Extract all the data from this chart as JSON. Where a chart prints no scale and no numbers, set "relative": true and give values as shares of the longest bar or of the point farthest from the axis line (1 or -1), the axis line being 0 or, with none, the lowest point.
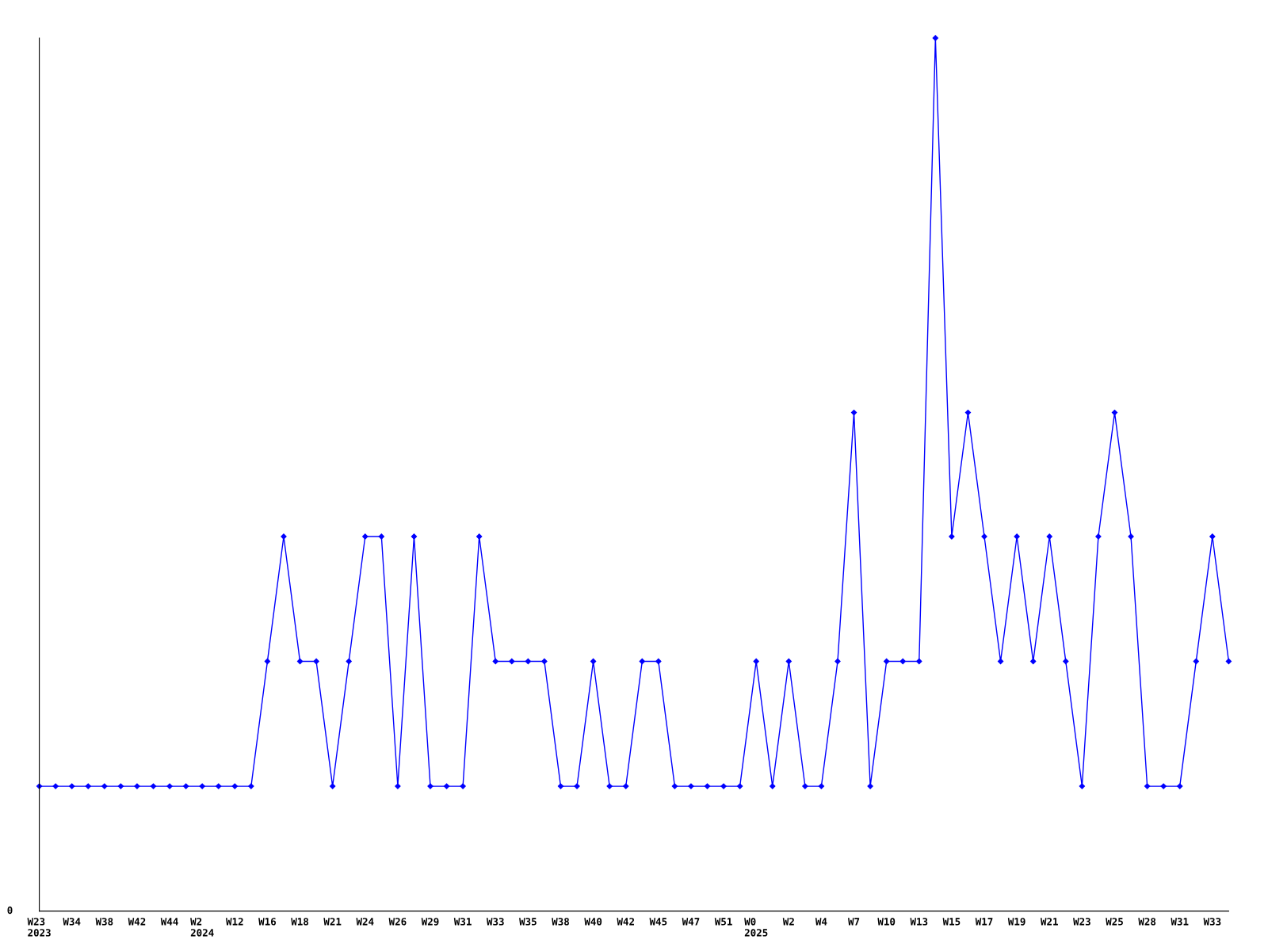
{
  "chart_data": {
    "type": "line",
    "relative": true,
    "marker": "diamond",
    "line_style": "solid",
    "grid": false,
    "legend": false,
    "categories": [
      "W23\n2023",
      null,
      "W34",
      null,
      "W38",
      null,
      "W42",
      null,
      "W44",
      null,
      "W2\n2024",
      null,
      "W12",
      null,
      "W16",
      null,
      "W18",
      null,
      "W21",
      null,
      "W24",
      null,
      "W26",
      null,
      "W29",
      null,
      "W31",
      null,
      "W33",
      null,
      "W35",
      null,
      "W38",
      null,
      "W40",
      null,
      "W42",
      null,
      "W45",
      null,
      "W47",
      null,
      "W51",
      null,
      "W0\n2025",
      null,
      "W2",
      null,
      "W4",
      null,
      "W7",
      null,
      "W10",
      null,
      "W13",
      null,
      "W15",
      null,
      "W17",
      null,
      "W19",
      null,
      "W21",
      null,
      "W23",
      null,
      "W25",
      null,
      "W28",
      null,
      "W31",
      null,
      "W33",
      null
    ],
    "series": [
      {
        "color": "#0000ff",
        "values": [
          0.143,
          0.143,
          0.143,
          0.143,
          0.143,
          0.143,
          0.143,
          0.143,
          0.143,
          0.143,
          0.143,
          0.143,
          0.143,
          0.143,
          0.286,
          0.429,
          0.286,
          0.286,
          0.143,
          0.286,
          0.429,
          0.429,
          0.143,
          0.429,
          0.143,
          0.143,
          0.143,
          0.429,
          0.286,
          0.286,
          0.286,
          0.286,
          0.143,
          0.143,
          0.286,
          0.143,
          0.143,
          0.286,
          0.286,
          0.143,
          0.143,
          0.143,
          0.143,
          0.143,
          0.286,
          0.143,
          0.286,
          0.143,
          0.143,
          0.286,
          0.571,
          0.143,
          0.286,
          0.286,
          0.286,
          1,
          0.429,
          0.571,
          0.429,
          0.286,
          0.429,
          0.286,
          0.429,
          0.286,
          0.143,
          0.429,
          0.571,
          0.429,
          0.143,
          0.143,
          0.143,
          0.286,
          0.429,
          0.286
        ]
      }
    ],
    "annotations": [
      "0"
    ]
  }
}
